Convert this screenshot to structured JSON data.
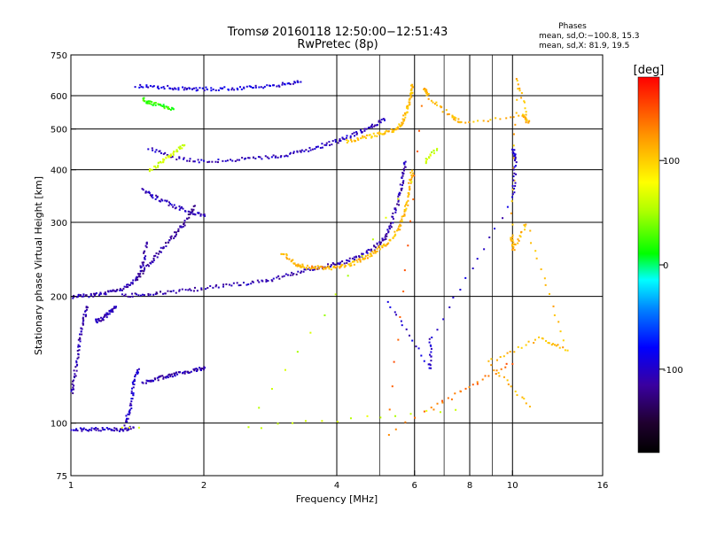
{
  "chart_data": {
    "type": "scatter",
    "title_line1": "Tromsø 20160118 12:50:00−12:51:43",
    "title_line2": "RwPretec (8p)",
    "phases_title": "Phases",
    "phases_o": "mean, sd,O:−100.8, 15.3",
    "phases_x": "mean, sd,X:  81.9, 19.5",
    "xlabel": "Frequency [MHz]",
    "ylabel": "Stationary phase Virtual Height [km]",
    "x_scale": "log",
    "y_scale": "log",
    "xlim": [
      1,
      16
    ],
    "ylim": [
      75,
      750
    ],
    "x_ticks": [
      {
        "value": 1,
        "label": "1"
      },
      {
        "value": 2,
        "label": "2"
      },
      {
        "value": 4,
        "label": "4"
      },
      {
        "value": 6,
        "label": "6"
      },
      {
        "value": 8,
        "label": "8"
      },
      {
        "value": 10,
        "label": "10"
      },
      {
        "value": 16,
        "label": "16"
      }
    ],
    "x_gridlines": [
      1,
      2,
      4,
      6,
      8,
      10
    ],
    "x_minor_gridlines": [
      5,
      7,
      9
    ],
    "y_ticks": [
      {
        "value": 75,
        "label": "75"
      },
      {
        "value": 100,
        "label": "100"
      },
      {
        "value": 200,
        "label": "200"
      },
      {
        "value": 300,
        "label": "300"
      },
      {
        "value": 400,
        "label": "400"
      },
      {
        "value": 500,
        "label": "500"
      },
      {
        "value": 600,
        "label": "600"
      },
      {
        "value": 750,
        "label": "750"
      }
    ],
    "y_gridlines": [
      100,
      200,
      300,
      400,
      500,
      600
    ],
    "grid": true,
    "colorbar": {
      "label": "[deg]",
      "range": [
        -180,
        180
      ],
      "ticks": [
        {
          "value": 100,
          "label": "100"
        },
        {
          "value": 0,
          "label": "0"
        },
        {
          "value": -100,
          "label": "-100"
        }
      ]
    },
    "traces": [
      {
        "phase": -105,
        "points": [
          [
            1.0,
            97
          ],
          [
            1.1,
            97
          ],
          [
            1.2,
            97
          ],
          [
            1.3,
            97
          ],
          [
            1.38,
            98
          ]
        ]
      },
      {
        "phase": 70,
        "points": [
          [
            1.3,
            98
          ],
          [
            1.35,
            98
          ],
          [
            1.42,
            98
          ]
        ]
      },
      {
        "phase": -110,
        "points": [
          [
            1.0,
            118
          ],
          [
            1.02,
            135
          ],
          [
            1.04,
            155
          ],
          [
            1.06,
            175
          ],
          [
            1.08,
            190
          ]
        ]
      },
      {
        "phase": -105,
        "points": [
          [
            1.13,
            175
          ],
          [
            1.18,
            178
          ],
          [
            1.22,
            185
          ],
          [
            1.26,
            190
          ]
        ]
      },
      {
        "phase": -110,
        "points": [
          [
            1.0,
            200
          ],
          [
            1.1,
            202
          ],
          [
            1.2,
            205
          ],
          [
            1.3,
            210
          ],
          [
            1.4,
            220
          ],
          [
            1.45,
            240
          ],
          [
            1.48,
            270
          ]
        ]
      },
      {
        "phase": -110,
        "points": [
          [
            1.3,
            202
          ],
          [
            1.5,
            203
          ],
          [
            1.7,
            206
          ],
          [
            2.0,
            210
          ],
          [
            2.4,
            215
          ],
          [
            2.8,
            220
          ],
          [
            3.2,
            228
          ],
          [
            3.6,
            235
          ],
          [
            4.0,
            240
          ],
          [
            4.4,
            248
          ],
          [
            4.8,
            260
          ],
          [
            5.1,
            275
          ],
          [
            5.3,
            300
          ],
          [
            5.5,
            340
          ],
          [
            5.6,
            380
          ],
          [
            5.7,
            420
          ]
        ]
      },
      {
        "phase": 110,
        "points": [
          [
            3.0,
            255
          ],
          [
            3.2,
            240
          ],
          [
            3.4,
            236
          ],
          [
            3.7,
            235
          ],
          [
            4.0,
            235
          ],
          [
            4.3,
            240
          ],
          [
            4.6,
            248
          ],
          [
            4.9,
            258
          ],
          [
            5.2,
            270
          ],
          [
            5.5,
            290
          ],
          [
            5.7,
            320
          ],
          [
            5.8,
            360
          ],
          [
            5.9,
            400
          ]
        ]
      },
      {
        "phase": 130,
        "points": [
          [
            3.5,
            237
          ],
          [
            3.7,
            236
          ]
        ]
      },
      {
        "phase": -105,
        "points": [
          [
            1.5,
            450
          ],
          [
            1.7,
            430
          ],
          [
            2.0,
            420
          ],
          [
            2.4,
            425
          ],
          [
            2.8,
            430
          ],
          [
            3.2,
            440
          ],
          [
            3.6,
            455
          ],
          [
            4.0,
            470
          ],
          [
            4.4,
            490
          ],
          [
            4.8,
            510
          ],
          [
            5.1,
            530
          ]
        ]
      },
      {
        "phase": 105,
        "points": [
          [
            4.2,
            470
          ],
          [
            4.6,
            480
          ],
          [
            5.0,
            490
          ],
          [
            5.4,
            500
          ],
          [
            5.6,
            520
          ],
          [
            5.75,
            560
          ],
          [
            5.85,
            600
          ],
          [
            5.9,
            640
          ]
        ]
      },
      {
        "phase": -95,
        "points": [
          [
            1.4,
            635
          ],
          [
            1.6,
            632
          ],
          [
            1.8,
            625
          ],
          [
            2.0,
            625
          ],
          [
            2.3,
            628
          ],
          [
            2.6,
            632
          ],
          [
            3.0,
            640
          ],
          [
            3.3,
            650
          ]
        ]
      },
      {
        "phase": 20,
        "points": [
          [
            1.45,
            590
          ],
          [
            1.5,
            580
          ],
          [
            1.6,
            570
          ],
          [
            1.7,
            560
          ]
        ]
      },
      {
        "phase": -105,
        "points": [
          [
            1.45,
            360
          ],
          [
            1.55,
            345
          ],
          [
            1.7,
            330
          ],
          [
            1.85,
            320
          ],
          [
            2.0,
            312
          ]
        ]
      },
      {
        "phase": -115,
        "points": [
          [
            1.4,
            220
          ],
          [
            1.5,
            240
          ],
          [
            1.6,
            260
          ],
          [
            1.7,
            280
          ],
          [
            1.8,
            300
          ],
          [
            1.9,
            330
          ]
        ]
      },
      {
        "phase": -110,
        "points": [
          [
            1.45,
            125
          ],
          [
            1.55,
            128
          ],
          [
            1.65,
            130
          ],
          [
            1.75,
            132
          ],
          [
            1.9,
            134
          ],
          [
            2.0,
            136
          ]
        ]
      },
      {
        "phase": -100,
        "points": [
          [
            1.32,
            100
          ],
          [
            1.36,
            110
          ],
          [
            1.38,
            125
          ],
          [
            1.42,
            135
          ]
        ]
      },
      {
        "phase": 65,
        "points": [
          [
            1.5,
            400
          ],
          [
            1.6,
            420
          ],
          [
            1.7,
            440
          ],
          [
            1.8,
            460
          ]
        ]
      },
      {
        "phase": 110,
        "points": [
          [
            6.3,
            630
          ],
          [
            6.4,
            600
          ],
          [
            7.2,
            540
          ],
          [
            7.6,
            520
          ],
          [
            10.5,
            540
          ],
          [
            10.8,
            520
          ],
          [
            10.2,
            660
          ],
          [
            9.9,
            280
          ],
          [
            10.0,
            260
          ],
          [
            10.7,
            300
          ],
          [
            13.2,
            150
          ],
          [
            11.5,
            160
          ],
          [
            8.8,
            140
          ],
          [
            10.9,
            110
          ]
        ]
      },
      {
        "phase": -100,
        "points": [
          [
            10.0,
            450
          ],
          [
            10.1,
            420
          ],
          [
            10.0,
            345
          ],
          [
            6.5,
            160
          ],
          [
            6.5,
            135
          ],
          [
            5.2,
            195
          ]
        ]
      },
      {
        "phase": 140,
        "points": [
          [
            6.5,
            110
          ],
          [
            10.0,
            140
          ],
          [
            5.2,
            95
          ],
          [
            6.2,
            570
          ]
        ]
      },
      {
        "phase": 60,
        "points": [
          [
            6.7,
            450
          ],
          [
            6.3,
            420
          ],
          [
            2.5,
            98
          ],
          [
            7.4,
            108
          ]
        ]
      }
    ]
  }
}
